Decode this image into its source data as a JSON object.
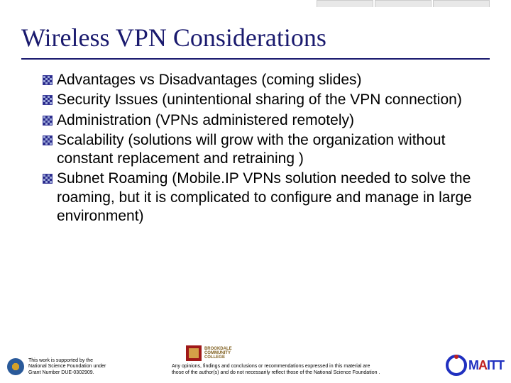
{
  "title": "Wireless VPN Considerations",
  "bullets": [
    "Advantages vs Disadvantages (coming slides)",
    "Security Issues (unintentional sharing of the VPN connection)",
    "Administration (VPNs administered remotely)",
    "Scalability (solutions will grow with the organization without constant replacement and retraining )",
    "Subnet Roaming (Mobile.IP VPNs solution needed to solve the roaming, but it is complicated to configure and manage in large environment)"
  ],
  "footer": {
    "nsf_line1": "This work is supported by the",
    "nsf_line2": "National Science Foundation under",
    "nsf_line3": "Grant Number DUE-0302909.",
    "brookdale_line1": "BROOKDALE",
    "brookdale_line2": "COMMUNITY",
    "brookdale_line3": "COLLEGE",
    "disclaimer_line1": "Any opinions, findings and conclusions or recommendations expressed in this material are",
    "disclaimer_line2": "those of the author(s) and do not necessarily reflect those of the National Science Foundation .",
    "maitt_m": "M",
    "maitt_a": "A",
    "maitt_itt": "ITT"
  }
}
